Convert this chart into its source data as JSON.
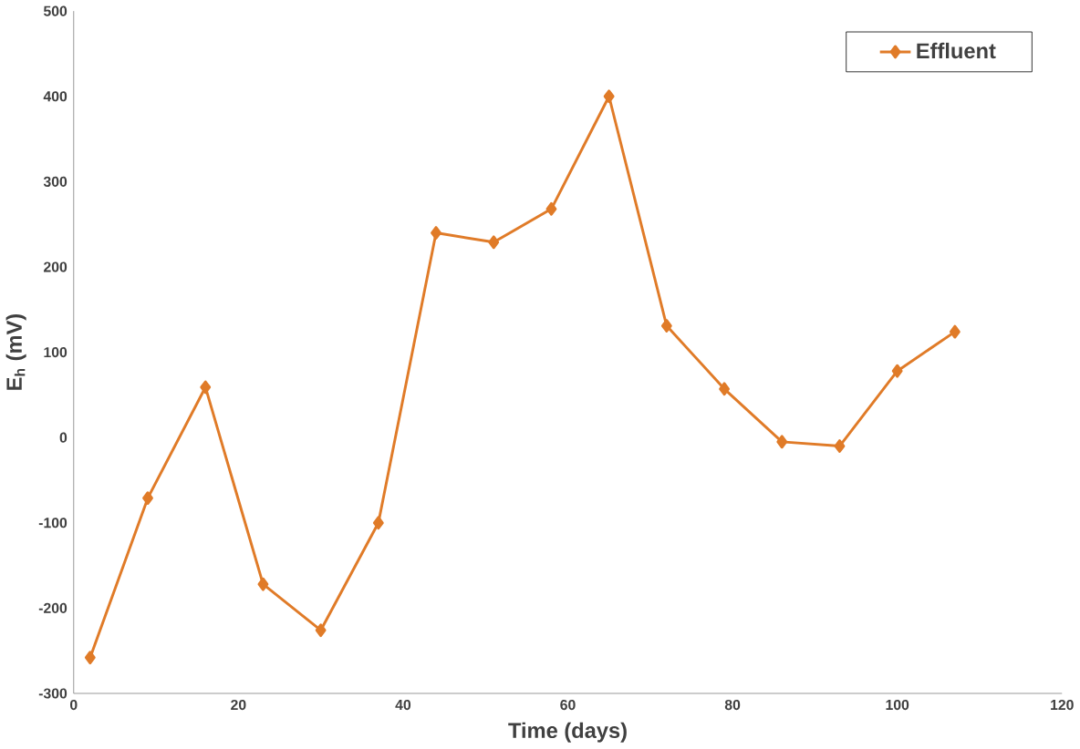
{
  "chart_data": {
    "type": "line",
    "xlabel": "Time (days)",
    "ylabel": "E$_{h}$ (mV)",
    "x": [
      2,
      9,
      16,
      23,
      30,
      37,
      44,
      51,
      58,
      65,
      72,
      79,
      86,
      93,
      100,
      107
    ],
    "series": [
      {
        "name": "Effluent",
        "color": "#e07b28",
        "values": [
          -258,
          -71,
          59,
          -172,
          -226,
          -100,
          240,
          229,
          268,
          400,
          131,
          57,
          -5,
          -10,
          78,
          124
        ]
      }
    ],
    "xlim": [
      0,
      120
    ],
    "ylim": [
      -300,
      500
    ],
    "xticks": [
      0,
      20,
      40,
      60,
      80,
      100,
      120
    ],
    "yticks": [
      -300,
      -200,
      -100,
      0,
      100,
      200,
      300,
      400,
      500
    ],
    "grid": false,
    "legend": "top right",
    "marker": "diamond",
    "line_style": "solid"
  }
}
